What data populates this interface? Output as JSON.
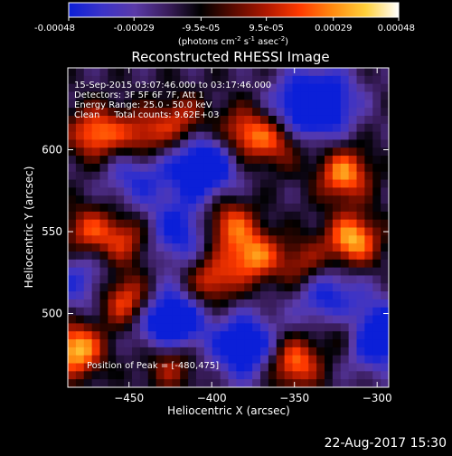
{
  "colorbar": {
    "tick_labels": [
      "-0.00048",
      "-0.00029",
      "-9.5e-05",
      "9.5e-05",
      "0.00029",
      "0.00048"
    ],
    "units_prefix": "(photons cm",
    "units_exp1": "-2",
    "units_mid1": " s",
    "units_exp2": "-1",
    "units_mid2": " asec",
    "units_exp3": "-2",
    "units_suffix": ")"
  },
  "chart_data": {
    "type": "heatmap",
    "title": "Reconstructed RHESSI Image",
    "xlabel": "Heliocentric X (arcsec)",
    "ylabel": "Heliocentric Y (arcsec)",
    "xlim": [
      -487,
      -293
    ],
    "ylim": [
      455,
      650
    ],
    "x_ticks": [
      -450,
      -400,
      -350,
      -300
    ],
    "y_ticks": [
      500,
      550,
      600
    ],
    "x_tick_labels": [
      "−450",
      "−400",
      "−350",
      "−300"
    ],
    "y_tick_labels": [
      "500",
      "550",
      "600"
    ],
    "colorbar_range": [
      -0.00048,
      0.00048
    ],
    "colormap": [
      "#0b1fd8",
      "#3b33c8",
      "#5a3aa8",
      "#3a1d5c",
      "#000000",
      "#5a0a00",
      "#b01800",
      "#ff3a00",
      "#ff8a10",
      "#ffd03a",
      "#ffffff"
    ],
    "annotations": [
      "15-Sep-2015 03:07:46.000 to 03:17:46.000",
      "Detectors: 3F 5F 6F 7F, Att 1",
      "Energy Range: 25.0 - 50.0 keV",
      "Clean     Total counts: 9.62E+03"
    ],
    "peak_label": "Position of Peak = [-480,475]",
    "peak_position": [
      -480,
      475
    ],
    "bright_sources": [
      {
        "x": -470,
        "y": 610,
        "level": 0.8
      },
      {
        "x": -442,
        "y": 608,
        "level": 0.65
      },
      {
        "x": -418,
        "y": 617,
        "level": 0.55
      },
      {
        "x": -380,
        "y": 610,
        "level": 0.7
      },
      {
        "x": -360,
        "y": 605,
        "level": 0.55
      },
      {
        "x": -320,
        "y": 585,
        "level": 0.85
      },
      {
        "x": -315,
        "y": 545,
        "level": 0.95
      },
      {
        "x": -345,
        "y": 530,
        "level": 0.5
      },
      {
        "x": -390,
        "y": 555,
        "level": 0.7
      },
      {
        "x": -375,
        "y": 535,
        "level": 0.8
      },
      {
        "x": -400,
        "y": 520,
        "level": 0.65
      },
      {
        "x": -452,
        "y": 508,
        "level": 0.75
      },
      {
        "x": -475,
        "y": 550,
        "level": 0.6
      },
      {
        "x": -452,
        "y": 545,
        "level": 0.55
      },
      {
        "x": -482,
        "y": 478,
        "level": 1.0
      },
      {
        "x": -425,
        "y": 470,
        "level": 0.55
      },
      {
        "x": -350,
        "y": 470,
        "level": 0.8
      },
      {
        "x": -318,
        "y": 490,
        "level": 0.55
      }
    ],
    "dim_regions": [
      {
        "x": -405,
        "y": 590,
        "level": -0.9
      },
      {
        "x": -445,
        "y": 585,
        "level": -0.5
      },
      {
        "x": -420,
        "y": 550,
        "level": -0.6
      },
      {
        "x": -425,
        "y": 495,
        "level": -0.95
      },
      {
        "x": -380,
        "y": 480,
        "level": -0.8
      },
      {
        "x": -330,
        "y": 510,
        "level": -0.6
      },
      {
        "x": -302,
        "y": 487,
        "level": -0.95
      },
      {
        "x": -345,
        "y": 625,
        "level": -0.7
      },
      {
        "x": -330,
        "y": 630,
        "level": -0.55
      },
      {
        "x": -480,
        "y": 520,
        "level": -0.45
      }
    ]
  },
  "footer": {
    "date_stamp": "22-Aug-2017 15:30"
  }
}
